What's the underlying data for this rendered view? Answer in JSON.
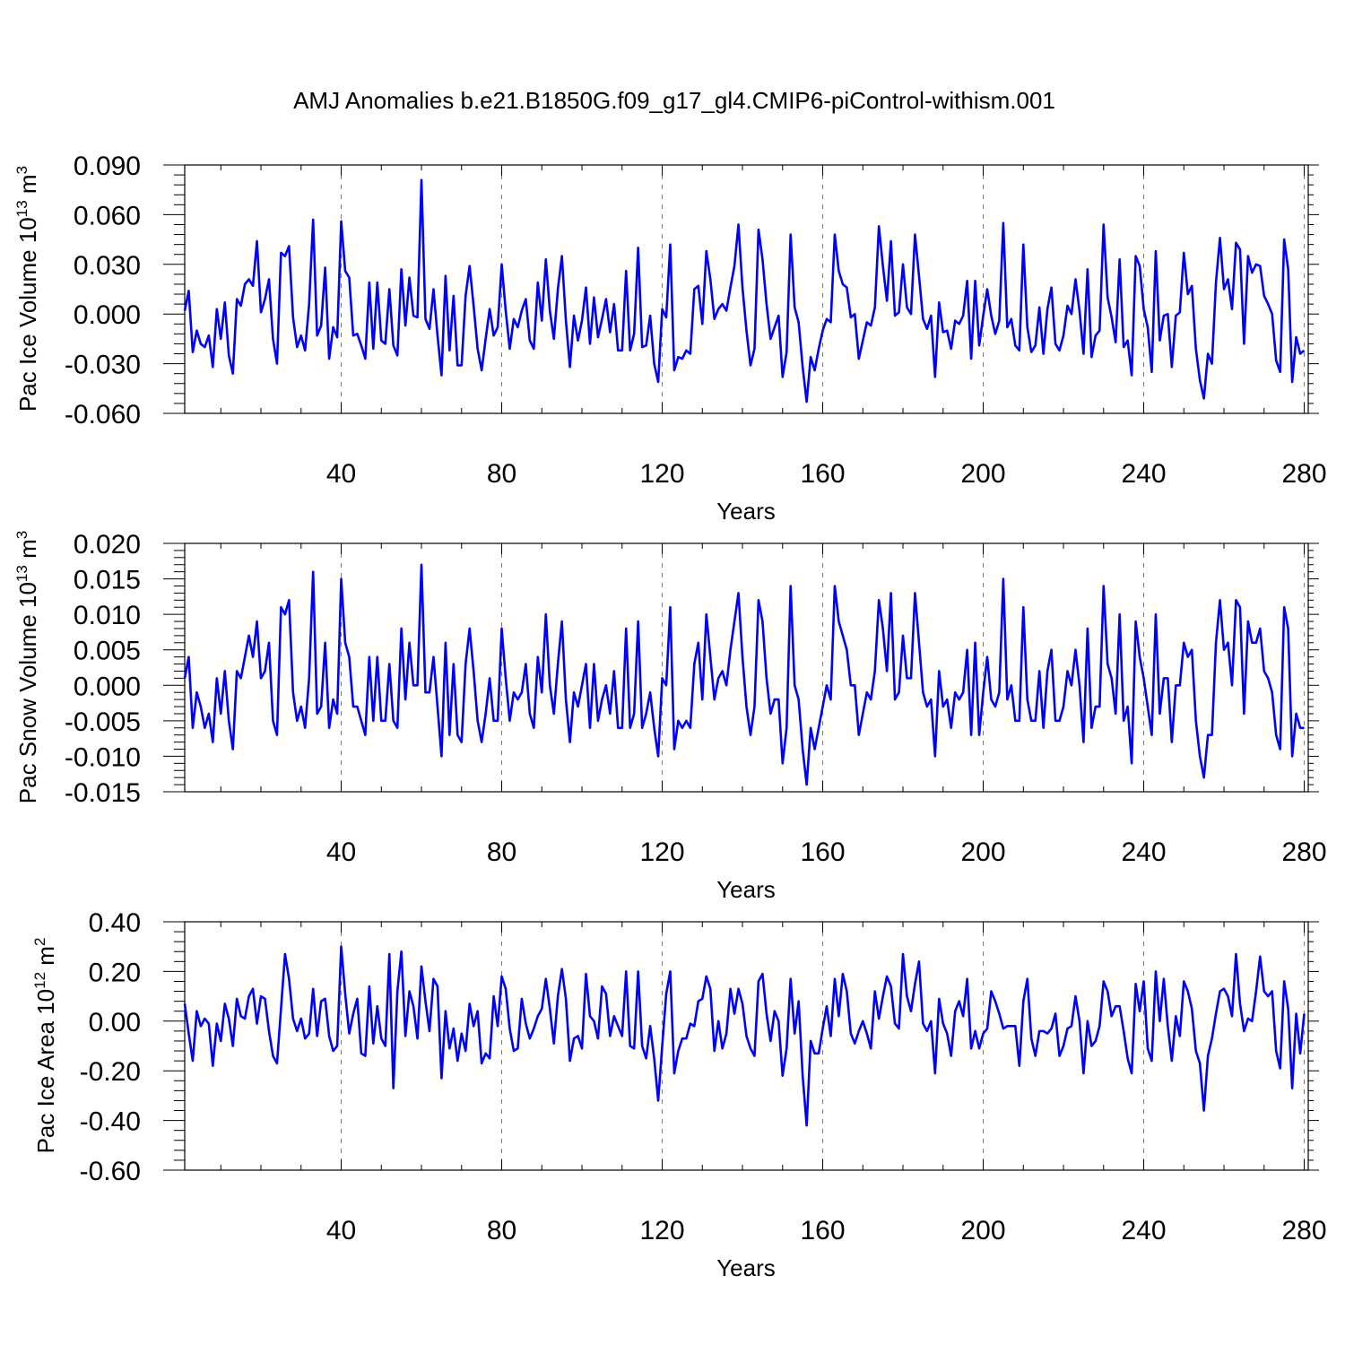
{
  "chart_data": {
    "title": "AMJ Anomalies b.e21.B1850G.f09_g17_gl4.CMIP6-piControl-withism.001",
    "line_color": "#0000ff",
    "panels": [
      {
        "type": "line",
        "xlabel": "Years",
        "ylabel": "Pac Ice Volume 10",
        "ylabel_exp": "13",
        "ylabel_unit": " m",
        "ylabel_unit_exp": "3",
        "xlim": [
          1,
          281
        ],
        "ylim": [
          -0.06,
          0.09
        ],
        "xticks": [
          40,
          80,
          120,
          160,
          200,
          240,
          280
        ],
        "xtick_labels": [
          "40",
          "80",
          "120",
          "160",
          "200",
          "240",
          "280"
        ],
        "yticks": [
          -0.06,
          -0.03,
          0.0,
          0.03,
          0.06,
          0.09
        ],
        "ytick_labels": [
          "-0.060",
          "-0.030",
          "0.000",
          "0.030",
          "0.060",
          "0.090"
        ],
        "grid_x": true,
        "values": [
          0.002,
          0.014,
          -0.023,
          -0.01,
          -0.018,
          -0.02,
          -0.013,
          -0.032,
          0.003,
          -0.015,
          0.007,
          -0.025,
          -0.036,
          0.009,
          0.005,
          0.018,
          0.021,
          0.017,
          0.044,
          0.001,
          0.009,
          0.021,
          -0.015,
          -0.03,
          0.037,
          0.035,
          0.041,
          -0.002,
          -0.02,
          -0.013,
          -0.022,
          0.006,
          0.057,
          -0.013,
          -0.007,
          0.028,
          -0.027,
          -0.008,
          -0.014,
          0.056,
          0.026,
          0.022,
          -0.013,
          -0.012,
          -0.019,
          -0.027,
          0.019,
          -0.021,
          0.019,
          -0.016,
          -0.018,
          0.015,
          -0.019,
          -0.025,
          0.027,
          -0.007,
          0.022,
          -0.001,
          -0.002,
          0.081,
          -0.003,
          -0.009,
          0.015,
          -0.013,
          -0.037,
          0.023,
          -0.022,
          0.011,
          -0.031,
          -0.031,
          0.011,
          0.029,
          0.005,
          -0.021,
          -0.034,
          -0.015,
          0.003,
          -0.013,
          -0.008,
          0.03,
          0.002,
          -0.021,
          -0.003,
          -0.008,
          0.002,
          0.009,
          -0.016,
          -0.021,
          0.019,
          -0.004,
          0.033,
          0.002,
          -0.015,
          0.015,
          0.035,
          -0.004,
          -0.032,
          -0.001,
          -0.016,
          -0.004,
          0.016,
          -0.018,
          0.01,
          -0.014,
          -0.003,
          0.009,
          -0.011,
          0.006,
          -0.022,
          -0.022,
          0.026,
          -0.022,
          -0.012,
          0.04,
          -0.02,
          -0.019,
          -0.001,
          -0.03,
          -0.041,
          0.003,
          -0.002,
          0.042,
          -0.034,
          -0.026,
          -0.027,
          -0.022,
          -0.024,
          0.015,
          0.017,
          -0.006,
          0.038,
          0.021,
          -0.003,
          0.003,
          0.006,
          0.002,
          0.016,
          0.029,
          0.054,
          0.016,
          -0.01,
          -0.031,
          -0.021,
          0.051,
          0.033,
          0.006,
          -0.015,
          -0.008,
          -0.001,
          -0.038,
          -0.023,
          0.048,
          0.004,
          -0.005,
          -0.032,
          -0.053,
          -0.026,
          -0.034,
          -0.021,
          -0.01,
          -0.003,
          -0.005,
          0.048,
          0.026,
          0.018,
          0.016,
          -0.002,
          0.0,
          -0.027,
          -0.016,
          -0.005,
          -0.007,
          0.004,
          0.053,
          0.029,
          0.008,
          0.044,
          -0.001,
          0.001,
          0.03,
          0.004,
          0.0,
          0.048,
          0.023,
          -0.003,
          -0.009,
          -0.001,
          -0.038,
          0.007,
          -0.011,
          -0.01,
          -0.021,
          -0.004,
          -0.006,
          -0.001,
          0.02,
          -0.027,
          0.02,
          -0.019,
          -0.001,
          0.015,
          -0.001,
          -0.012,
          -0.004,
          0.055,
          -0.008,
          -0.003,
          -0.019,
          -0.022,
          0.042,
          -0.008,
          -0.023,
          -0.019,
          0.004,
          -0.024,
          0.003,
          0.016,
          -0.018,
          -0.022,
          -0.013,
          0.005,
          0.0,
          0.021,
          0.002,
          -0.024,
          0.027,
          -0.026,
          -0.013,
          -0.01,
          0.054,
          0.01,
          -0.002,
          -0.017,
          0.033,
          -0.02,
          -0.016,
          -0.037,
          0.035,
          0.029,
          0.003,
          -0.008,
          -0.035,
          0.038,
          -0.016,
          -0.001,
          0.0,
          -0.032,
          -0.001,
          0.001,
          0.037,
          0.012,
          0.017,
          -0.021,
          -0.04,
          -0.051,
          -0.024,
          -0.03,
          0.019,
          0.046,
          0.015,
          0.021,
          0.003,
          0.043,
          0.039,
          -0.018,
          0.035,
          0.025,
          0.03,
          0.029,
          0.011,
          0.006,
          0.0,
          -0.028,
          -0.035,
          0.045,
          0.027,
          -0.041,
          -0.014,
          -0.024,
          -0.022
        ]
      },
      {
        "type": "line",
        "xlabel": "Years",
        "ylabel": "Pac Snow Volume 10",
        "ylabel_exp": "13",
        "ylabel_unit": " m",
        "ylabel_unit_exp": "3",
        "xlim": [
          1,
          281
        ],
        "ylim": [
          -0.015,
          0.02
        ],
        "xticks": [
          40,
          80,
          120,
          160,
          200,
          240,
          280
        ],
        "xtick_labels": [
          "40",
          "80",
          "120",
          "160",
          "200",
          "240",
          "280"
        ],
        "yticks": [
          -0.015,
          -0.01,
          -0.005,
          0.0,
          0.005,
          0.01,
          0.015,
          0.02
        ],
        "ytick_labels": [
          "-0.015",
          "-0.010",
          "-0.005",
          "0.000",
          "0.005",
          "0.010",
          "0.015",
          "0.020"
        ],
        "grid_x": true,
        "values": [
          0.001,
          0.004,
          -0.006,
          -0.001,
          -0.003,
          -0.006,
          -0.004,
          -0.008,
          0.001,
          -0.004,
          0.002,
          -0.005,
          -0.009,
          0.002,
          0.001,
          0.004,
          0.007,
          0.004,
          0.009,
          0.001,
          0.002,
          0.006,
          -0.005,
          -0.007,
          0.011,
          0.01,
          0.012,
          -0.001,
          -0.005,
          -0.003,
          -0.006,
          0.001,
          0.016,
          -0.004,
          -0.003,
          0.006,
          -0.006,
          -0.002,
          -0.004,
          0.015,
          0.006,
          0.004,
          -0.003,
          -0.003,
          -0.005,
          -0.007,
          0.004,
          -0.005,
          0.004,
          -0.005,
          -0.005,
          0.003,
          -0.005,
          -0.006,
          0.008,
          -0.002,
          0.006,
          0.0,
          0.0,
          0.017,
          -0.001,
          -0.001,
          0.004,
          -0.003,
          -0.01,
          0.006,
          -0.007,
          0.003,
          -0.007,
          -0.008,
          0.003,
          0.008,
          0.002,
          -0.005,
          -0.008,
          -0.004,
          0.001,
          -0.005,
          -0.005,
          0.008,
          0.001,
          -0.005,
          -0.001,
          -0.002,
          -0.001,
          0.003,
          -0.004,
          -0.006,
          0.004,
          -0.001,
          0.01,
          0.0,
          -0.004,
          0.003,
          0.009,
          -0.002,
          -0.008,
          -0.001,
          -0.003,
          0.0,
          0.003,
          -0.006,
          0.003,
          -0.005,
          -0.002,
          0.0,
          -0.004,
          0.002,
          -0.006,
          -0.006,
          0.008,
          -0.006,
          -0.004,
          0.009,
          -0.006,
          -0.004,
          -0.001,
          -0.006,
          -0.01,
          0.001,
          0.0,
          0.011,
          -0.009,
          -0.005,
          -0.006,
          -0.005,
          -0.006,
          0.003,
          0.006,
          -0.002,
          0.01,
          0.004,
          -0.002,
          0.001,
          0.002,
          0.0,
          0.005,
          0.009,
          0.013,
          0.004,
          -0.003,
          -0.007,
          -0.003,
          0.012,
          0.009,
          0.001,
          -0.004,
          -0.002,
          -0.002,
          -0.011,
          -0.006,
          0.014,
          0.0,
          -0.002,
          -0.009,
          -0.014,
          -0.006,
          -0.009,
          -0.006,
          -0.003,
          0.0,
          -0.002,
          0.014,
          0.009,
          0.007,
          0.005,
          0.0,
          0.0,
          -0.007,
          -0.004,
          -0.001,
          -0.002,
          0.002,
          0.012,
          0.008,
          0.002,
          0.013,
          -0.002,
          -0.001,
          0.007,
          0.001,
          0.001,
          0.013,
          0.006,
          -0.001,
          -0.003,
          -0.002,
          -0.01,
          0.002,
          -0.003,
          -0.002,
          -0.006,
          -0.001,
          -0.002,
          -0.001,
          0.005,
          -0.007,
          0.006,
          -0.007,
          -0.001,
          0.004,
          -0.002,
          -0.003,
          -0.001,
          0.015,
          -0.002,
          0.0,
          -0.005,
          -0.005,
          0.011,
          -0.002,
          -0.005,
          -0.005,
          0.002,
          -0.006,
          0.002,
          0.005,
          -0.005,
          -0.005,
          -0.003,
          0.002,
          0.0,
          0.005,
          0.0,
          -0.008,
          0.008,
          -0.006,
          -0.003,
          -0.003,
          0.014,
          0.003,
          0.001,
          -0.004,
          0.01,
          -0.005,
          -0.003,
          -0.011,
          0.009,
          0.004,
          0.001,
          -0.003,
          -0.007,
          0.01,
          -0.004,
          0.001,
          0.001,
          -0.008,
          0.0,
          0.0,
          0.006,
          0.004,
          0.005,
          -0.005,
          -0.01,
          -0.013,
          -0.007,
          -0.007,
          0.006,
          0.012,
          0.005,
          0.006,
          0.0,
          0.012,
          0.011,
          -0.004,
          0.009,
          0.006,
          0.006,
          0.008,
          0.002,
          0.001,
          -0.001,
          -0.007,
          -0.009,
          0.011,
          0.008,
          -0.01,
          -0.004,
          -0.006,
          -0.006
        ]
      },
      {
        "type": "line",
        "xlabel": "Years",
        "ylabel": "Pac Ice Area 10",
        "ylabel_exp": "12",
        "ylabel_unit": " m",
        "ylabel_unit_exp": "2",
        "xlim": [
          1,
          281
        ],
        "ylim": [
          -0.6,
          0.4
        ],
        "xticks": [
          40,
          80,
          120,
          160,
          200,
          240,
          280
        ],
        "xtick_labels": [
          "40",
          "80",
          "120",
          "160",
          "200",
          "240",
          "280"
        ],
        "yticks": [
          -0.6,
          -0.4,
          -0.2,
          0.0,
          0.2,
          0.4
        ],
        "ytick_labels": [
          "-0.60",
          "-0.40",
          "-0.20",
          "0.00",
          "0.20",
          "0.40"
        ],
        "grid_x": true,
        "values": [
          0.07,
          -0.05,
          -0.16,
          0.04,
          -0.02,
          0.01,
          -0.01,
          -0.18,
          -0.01,
          -0.08,
          0.07,
          0.01,
          -0.1,
          0.09,
          0.02,
          0.01,
          0.1,
          0.13,
          -0.01,
          0.1,
          0.09,
          -0.04,
          -0.14,
          -0.17,
          0.05,
          0.27,
          0.17,
          0.01,
          -0.04,
          0.01,
          -0.07,
          -0.05,
          0.13,
          -0.06,
          0.08,
          0.09,
          -0.06,
          -0.12,
          -0.1,
          0.3,
          0.11,
          -0.05,
          0.03,
          0.09,
          -0.13,
          -0.14,
          0.14,
          -0.09,
          0.06,
          -0.07,
          -0.1,
          0.27,
          -0.27,
          0.12,
          0.28,
          -0.06,
          0.12,
          0.06,
          -0.07,
          0.22,
          0.08,
          -0.04,
          0.17,
          0.14,
          -0.23,
          0.04,
          -0.11,
          -0.03,
          -0.16,
          -0.05,
          -0.12,
          0.07,
          -0.02,
          0.04,
          -0.17,
          -0.13,
          -0.15,
          0.1,
          -0.02,
          0.18,
          0.13,
          -0.03,
          -0.12,
          -0.11,
          0.09,
          -0.01,
          -0.07,
          -0.03,
          0.02,
          0.05,
          0.17,
          0.05,
          -0.09,
          0.1,
          0.21,
          0.09,
          -0.16,
          -0.07,
          -0.06,
          -0.11,
          0.19,
          0.02,
          0.0,
          -0.07,
          0.14,
          0.11,
          -0.06,
          0.02,
          -0.02,
          -0.06,
          0.2,
          -0.1,
          -0.11,
          0.2,
          -0.1,
          -0.15,
          -0.02,
          -0.15,
          -0.32,
          -0.1,
          0.11,
          0.2,
          -0.21,
          -0.12,
          -0.07,
          -0.07,
          -0.01,
          -0.02,
          0.08,
          0.09,
          0.18,
          0.13,
          -0.12,
          0.0,
          -0.11,
          -0.05,
          0.13,
          0.03,
          0.13,
          0.07,
          -0.06,
          -0.11,
          -0.14,
          0.16,
          0.19,
          0.03,
          -0.08,
          0.04,
          0.0,
          -0.22,
          -0.11,
          0.17,
          -0.05,
          0.08,
          -0.22,
          -0.42,
          -0.08,
          -0.13,
          -0.13,
          -0.03,
          0.06,
          -0.06,
          0.17,
          0.02,
          0.19,
          0.12,
          -0.05,
          -0.09,
          -0.04,
          0.0,
          -0.05,
          -0.11,
          0.12,
          0.01,
          0.1,
          0.18,
          0.14,
          -0.01,
          -0.03,
          0.27,
          0.1,
          0.04,
          0.15,
          0.24,
          -0.01,
          -0.04,
          0.0,
          -0.21,
          0.09,
          -0.01,
          -0.05,
          -0.14,
          0.04,
          0.08,
          0.02,
          0.17,
          -0.11,
          -0.04,
          -0.11,
          -0.05,
          -0.03,
          0.12,
          0.08,
          0.03,
          -0.03,
          -0.02,
          -0.02,
          -0.02,
          -0.18,
          0.08,
          0.17,
          -0.07,
          -0.14,
          -0.04,
          -0.04,
          -0.05,
          -0.03,
          0.03,
          -0.14,
          -0.1,
          -0.03,
          -0.02,
          0.1,
          0.0,
          -0.21,
          0.0,
          -0.1,
          -0.08,
          -0.02,
          0.16,
          0.12,
          0.02,
          0.06,
          0.06,
          -0.04,
          -0.15,
          -0.21,
          0.15,
          0.04,
          0.16,
          -0.11,
          -0.16,
          0.2,
          0.0,
          0.17,
          -0.02,
          -0.16,
          0.02,
          -0.06,
          0.16,
          0.12,
          0.05,
          -0.12,
          -0.17,
          -0.36,
          -0.14,
          -0.07,
          0.03,
          0.12,
          0.13,
          0.1,
          0.02,
          0.27,
          0.07,
          -0.04,
          0.01,
          0.0,
          0.12,
          0.26,
          0.12,
          0.1,
          0.12,
          -0.12,
          -0.19,
          0.16,
          0.05,
          -0.27,
          0.03,
          -0.13,
          0.03
        ]
      }
    ]
  }
}
